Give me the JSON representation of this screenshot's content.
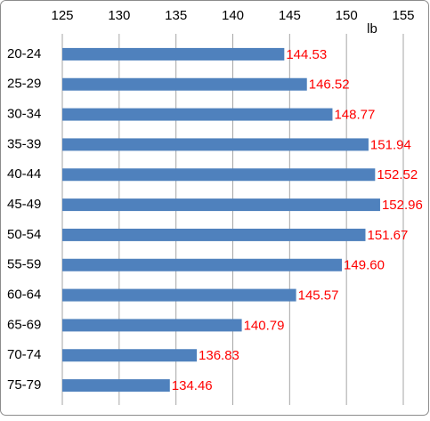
{
  "chart_data": {
    "type": "bar",
    "orientation": "horizontal",
    "x_unit_label": "lb",
    "categories": [
      "20-24",
      "25-29",
      "30-34",
      "35-39",
      "40-44",
      "45-49",
      "50-54",
      "55-59",
      "60-64",
      "65-69",
      "70-74",
      "75-79"
    ],
    "values": [
      144.53,
      146.52,
      148.77,
      151.94,
      152.52,
      152.96,
      151.67,
      149.6,
      145.57,
      140.79,
      136.83,
      134.46
    ],
    "value_labels": [
      "144.53",
      "146.52",
      "148.77",
      "151.94",
      "152.52",
      "152.96",
      "151.67",
      "149.60",
      "145.57",
      "140.79",
      "136.83",
      "134.46"
    ],
    "color": "#4f81bd",
    "value_label_color": "#ff0000",
    "xlim": [
      125,
      155
    ],
    "xticks": [
      125,
      130,
      135,
      140,
      145,
      150,
      155
    ],
    "grid": true
  }
}
